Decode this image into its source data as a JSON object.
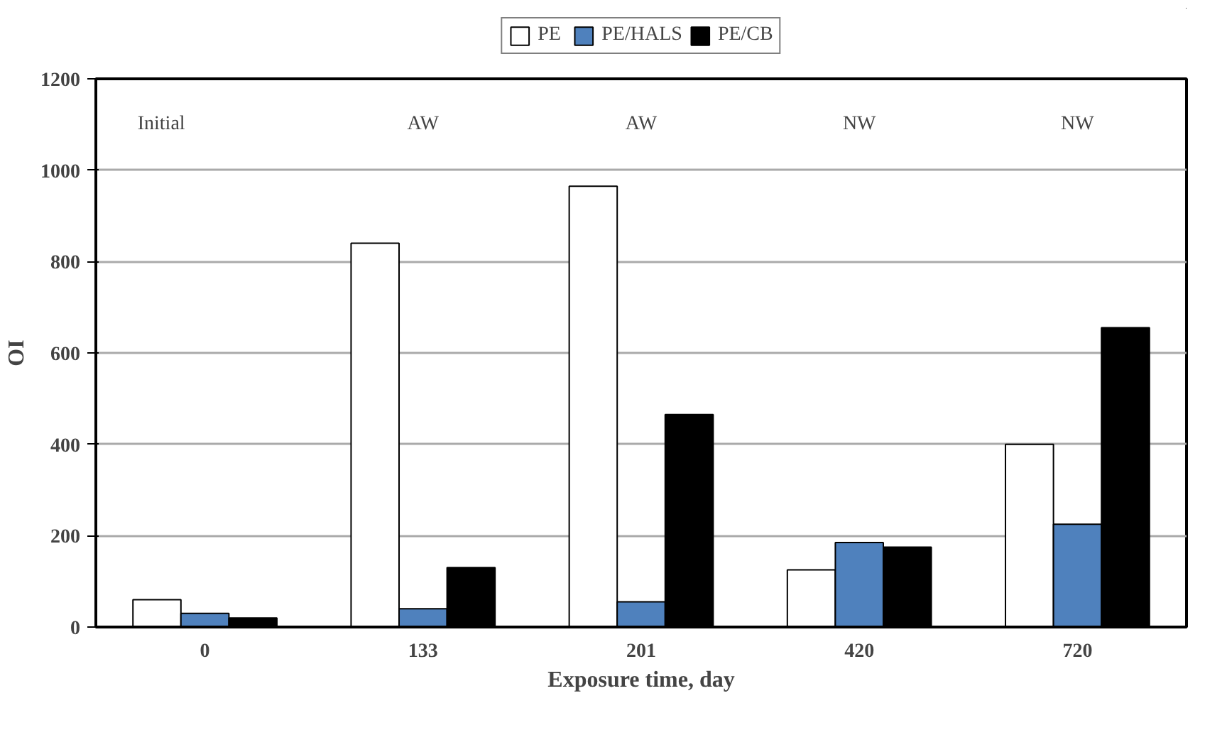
{
  "chart_data": {
    "type": "bar",
    "xlabel": "Exposure time, day",
    "ylabel": "OI",
    "categories": [
      "0",
      "133",
      "201",
      "420",
      "720"
    ],
    "series": [
      {
        "name": "PE",
        "color": "#ffffff",
        "values": [
          60,
          840,
          965,
          125,
          400
        ]
      },
      {
        "name": "PE/HALS",
        "color": "#4f81bd",
        "values": [
          30,
          40,
          55,
          185,
          225
        ]
      },
      {
        "name": "PE/CB",
        "color": "#000000",
        "values": [
          20,
          130,
          465,
          175,
          655
        ]
      }
    ],
    "ylim": [
      0,
      1200
    ],
    "yticks": [
      0,
      200,
      400,
      600,
      800,
      1000,
      1200
    ],
    "grid": "y",
    "legend": "top",
    "annotations": [
      "Initial",
      "AW",
      "AW",
      "NW",
      "NW"
    ]
  }
}
